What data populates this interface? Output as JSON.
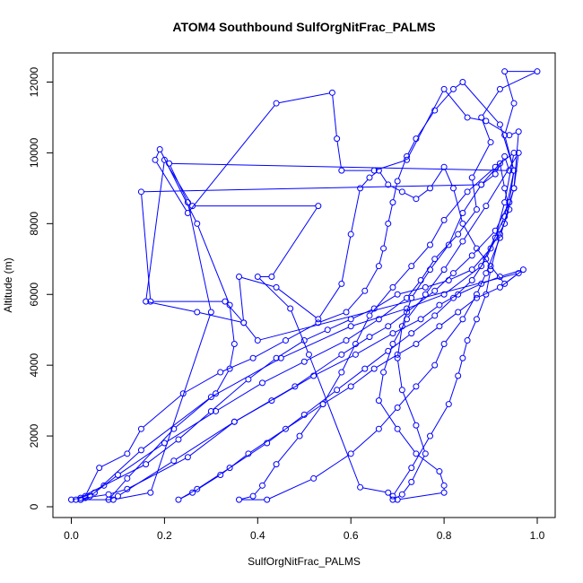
{
  "chart_data": {
    "type": "line",
    "title": "ATOM4 Southbound SulfOrgNitFrac_PALMS",
    "xlabel": "SulfOrgNitFrac_PALMS",
    "ylabel": "Altitude (m)",
    "xlim": [
      0.0,
      1.0
    ],
    "ylim": [
      0,
      12000
    ],
    "x_ticks": [
      0.0,
      0.2,
      0.4,
      0.6,
      0.8,
      1.0
    ],
    "x_tick_labels": [
      "0.0",
      "0.2",
      "0.4",
      "0.6",
      "0.8",
      "1.0"
    ],
    "y_ticks": [
      0,
      2000,
      4000,
      6000,
      8000,
      10000,
      12000
    ],
    "y_tick_labels": [
      "0",
      "2000",
      "4000",
      "6000",
      "8000",
      "10000",
      "12000"
    ],
    "grid": false,
    "legend": "none",
    "series_color": "#0000ff",
    "points": [
      [
        0.0,
        200
      ],
      [
        0.02,
        250
      ],
      [
        0.05,
        400
      ],
      [
        0.15,
        1600
      ],
      [
        0.3,
        3100
      ],
      [
        0.45,
        4200
      ],
      [
        0.6,
        5100
      ],
      [
        0.72,
        5600
      ],
      [
        0.8,
        6000
      ],
      [
        0.88,
        6800
      ],
      [
        0.93,
        8200
      ],
      [
        0.95,
        9500
      ],
      [
        0.93,
        10500
      ],
      [
        0.95,
        11400
      ],
      [
        0.93,
        12300
      ],
      [
        1.0,
        12300
      ],
      [
        0.92,
        11800
      ],
      [
        0.88,
        11000
      ],
      [
        0.9,
        10300
      ],
      [
        0.86,
        9300
      ],
      [
        0.87,
        8400
      ],
      [
        0.83,
        7700
      ],
      [
        0.78,
        7000
      ],
      [
        0.75,
        6400
      ],
      [
        0.72,
        5900
      ],
      [
        0.66,
        5300
      ],
      [
        0.59,
        4700
      ],
      [
        0.5,
        4100
      ],
      [
        0.41,
        3500
      ],
      [
        0.31,
        2700
      ],
      [
        0.2,
        1800
      ],
      [
        0.1,
        900
      ],
      [
        0.04,
        300
      ],
      [
        0.02,
        200
      ],
      [
        0.03,
        250
      ],
      [
        0.08,
        350
      ],
      [
        0.12,
        500
      ],
      [
        0.25,
        1400
      ],
      [
        0.35,
        2400
      ],
      [
        0.48,
        3400
      ],
      [
        0.58,
        4300
      ],
      [
        0.64,
        4800
      ],
      [
        0.68,
        5100
      ],
      [
        0.72,
        5500
      ],
      [
        0.78,
        6100
      ],
      [
        0.82,
        6600
      ],
      [
        0.86,
        7100
      ],
      [
        0.91,
        7800
      ],
      [
        0.94,
        8600
      ],
      [
        0.95,
        9500
      ],
      [
        0.92,
        10800
      ],
      [
        0.84,
        12000
      ],
      [
        0.82,
        11800
      ],
      [
        0.78,
        11200
      ],
      [
        0.74,
        10400
      ],
      [
        0.72,
        9900
      ],
      [
        0.7,
        9200
      ],
      [
        0.69,
        8600
      ],
      [
        0.68,
        8000
      ],
      [
        0.67,
        7300
      ],
      [
        0.66,
        6800
      ],
      [
        0.63,
        6100
      ],
      [
        0.59,
        5500
      ],
      [
        0.53,
        5200
      ],
      [
        0.46,
        4700
      ],
      [
        0.39,
        4200
      ],
      [
        0.32,
        3800
      ],
      [
        0.24,
        3200
      ],
      [
        0.15,
        2200
      ],
      [
        0.12,
        1500
      ],
      [
        0.06,
        1100
      ],
      [
        0.03,
        300
      ],
      [
        0.01,
        200
      ],
      [
        0.07,
        600
      ],
      [
        0.16,
        1200
      ],
      [
        0.23,
        1900
      ],
      [
        0.3,
        2700
      ],
      [
        0.38,
        3600
      ],
      [
        0.44,
        4200
      ],
      [
        0.5,
        4700
      ],
      [
        0.55,
        5000
      ],
      [
        0.6,
        5300
      ],
      [
        0.65,
        5600
      ],
      [
        0.7,
        6000
      ],
      [
        0.76,
        6200
      ],
      [
        0.81,
        6400
      ],
      [
        0.86,
        6700
      ],
      [
        0.9,
        7300
      ],
      [
        0.93,
        8000
      ],
      [
        0.95,
        9000
      ],
      [
        0.96,
        10600
      ],
      [
        0.94,
        10500
      ],
      [
        0.89,
        10900
      ],
      [
        0.85,
        11000
      ],
      [
        0.8,
        11800
      ],
      [
        0.72,
        9800
      ],
      [
        0.65,
        9500
      ],
      [
        0.58,
        9500
      ],
      [
        0.57,
        10400
      ],
      [
        0.56,
        11700
      ],
      [
        0.44,
        11400
      ],
      [
        0.25,
        8300
      ],
      [
        0.18,
        9800
      ],
      [
        0.19,
        10100
      ],
      [
        0.27,
        8000
      ],
      [
        0.34,
        5700
      ],
      [
        0.35,
        4600
      ],
      [
        0.34,
        3900
      ],
      [
        0.31,
        3200
      ],
      [
        0.22,
        2200
      ],
      [
        0.12,
        800
      ],
      [
        0.08,
        200
      ],
      [
        0.1,
        300
      ],
      [
        0.22,
        1300
      ],
      [
        0.35,
        2400
      ],
      [
        0.43,
        3000
      ],
      [
        0.52,
        3700
      ],
      [
        0.61,
        4300
      ],
      [
        0.69,
        4900
      ],
      [
        0.75,
        5300
      ],
      [
        0.79,
        5700
      ],
      [
        0.83,
        6000
      ],
      [
        0.88,
        6300
      ],
      [
        0.92,
        6500
      ],
      [
        0.97,
        6700
      ],
      [
        0.92,
        6200
      ],
      [
        0.87,
        5900
      ],
      [
        0.83,
        5500
      ],
      [
        0.79,
        5100
      ],
      [
        0.74,
        4600
      ],
      [
        0.7,
        4300
      ],
      [
        0.65,
        3900
      ],
      [
        0.6,
        3400
      ],
      [
        0.54,
        2900
      ],
      [
        0.46,
        2200
      ],
      [
        0.38,
        1500
      ],
      [
        0.32,
        900
      ],
      [
        0.26,
        400
      ],
      [
        0.23,
        200
      ],
      [
        0.27,
        500
      ],
      [
        0.34,
        1100
      ],
      [
        0.42,
        1800
      ],
      [
        0.5,
        2600
      ],
      [
        0.57,
        3300
      ],
      [
        0.63,
        3900
      ],
      [
        0.68,
        4400
      ],
      [
        0.73,
        4900
      ],
      [
        0.78,
        5400
      ],
      [
        0.82,
        5900
      ],
      [
        0.86,
        6400
      ],
      [
        0.89,
        7000
      ],
      [
        0.91,
        7600
      ],
      [
        0.93,
        8600
      ],
      [
        0.95,
        10000
      ],
      [
        0.91,
        9600
      ],
      [
        0.85,
        8900
      ],
      [
        0.8,
        8100
      ],
      [
        0.77,
        7400
      ],
      [
        0.73,
        6800
      ],
      [
        0.69,
        6200
      ],
      [
        0.64,
        5400
      ],
      [
        0.61,
        4600
      ],
      [
        0.58,
        3800
      ],
      [
        0.54,
        2900
      ],
      [
        0.49,
        2000
      ],
      [
        0.44,
        1200
      ],
      [
        0.41,
        600
      ],
      [
        0.39,
        300
      ],
      [
        0.36,
        200
      ],
      [
        0.42,
        200
      ],
      [
        0.52,
        800
      ],
      [
        0.6,
        1500
      ],
      [
        0.66,
        2200
      ],
      [
        0.7,
        2800
      ],
      [
        0.74,
        3400
      ],
      [
        0.78,
        4000
      ],
      [
        0.8,
        4600
      ],
      [
        0.84,
        5300
      ],
      [
        0.87,
        6000
      ],
      [
        0.89,
        6600
      ],
      [
        0.92,
        7600
      ],
      [
        0.95,
        9000
      ],
      [
        0.96,
        10000
      ],
      [
        0.89,
        8500
      ],
      [
        0.84,
        7500
      ],
      [
        0.8,
        6700
      ],
      [
        0.76,
        6000
      ],
      [
        0.72,
        5300
      ],
      [
        0.69,
        4600
      ],
      [
        0.67,
        3800
      ],
      [
        0.66,
        3000
      ],
      [
        0.7,
        2200
      ],
      [
        0.74,
        1500
      ],
      [
        0.79,
        1000
      ],
      [
        0.8,
        600
      ],
      [
        0.8,
        400
      ],
      [
        0.7,
        200
      ],
      [
        0.69,
        300
      ],
      [
        0.73,
        1100
      ],
      [
        0.77,
        2000
      ],
      [
        0.81,
        2900
      ],
      [
        0.83,
        3700
      ],
      [
        0.84,
        4200
      ],
      [
        0.85,
        4700
      ],
      [
        0.87,
        5300
      ],
      [
        0.89,
        6000
      ],
      [
        0.9,
        6700
      ],
      [
        0.92,
        7700
      ],
      [
        0.94,
        8400
      ],
      [
        0.93,
        9000
      ],
      [
        0.92,
        9700
      ],
      [
        0.88,
        9100
      ],
      [
        0.84,
        8300
      ],
      [
        0.81,
        7400
      ],
      [
        0.77,
        6700
      ],
      [
        0.73,
        5900
      ],
      [
        0.71,
        5100
      ],
      [
        0.7,
        4200
      ],
      [
        0.71,
        3300
      ],
      [
        0.74,
        2300
      ],
      [
        0.76,
        1500
      ],
      [
        0.73,
        700
      ],
      [
        0.71,
        350
      ],
      [
        0.69,
        200
      ],
      [
        0.68,
        400
      ],
      [
        0.62,
        550
      ],
      [
        0.51,
        4300
      ],
      [
        0.47,
        5600
      ],
      [
        0.4,
        6500
      ],
      [
        0.43,
        6500
      ],
      [
        0.53,
        8500
      ],
      [
        0.26,
        8500
      ],
      [
        0.2,
        9800
      ],
      [
        0.16,
        5800
      ],
      [
        0.27,
        5500
      ],
      [
        0.37,
        5200
      ],
      [
        0.36,
        6500
      ],
      [
        0.44,
        6200
      ],
      [
        0.53,
        5300
      ],
      [
        0.58,
        6300
      ],
      [
        0.6,
        7700
      ],
      [
        0.62,
        9000
      ],
      [
        0.64,
        9300
      ],
      [
        0.66,
        9500
      ],
      [
        0.68,
        9100
      ],
      [
        0.71,
        8900
      ],
      [
        0.74,
        8700
      ],
      [
        0.77,
        9000
      ],
      [
        0.8,
        9600
      ],
      [
        0.82,
        9000
      ],
      [
        0.84,
        8000
      ],
      [
        0.87,
        7300
      ],
      [
        0.9,
        6800
      ],
      [
        0.93,
        6300
      ],
      [
        0.96,
        6600
      ],
      [
        0.4,
        4700
      ],
      [
        0.37,
        5200
      ],
      [
        0.33,
        5800
      ],
      [
        0.17,
        5800
      ],
      [
        0.15,
        8900
      ],
      [
        0.88,
        9100
      ],
      [
        0.91,
        9400
      ],
      [
        0.93,
        9900
      ],
      [
        0.94,
        9500
      ],
      [
        0.21,
        9700
      ],
      [
        0.25,
        8600
      ],
      [
        0.3,
        5500
      ],
      [
        0.17,
        400
      ],
      [
        0.09,
        200
      ],
      [
        0.02,
        200
      ]
    ]
  }
}
